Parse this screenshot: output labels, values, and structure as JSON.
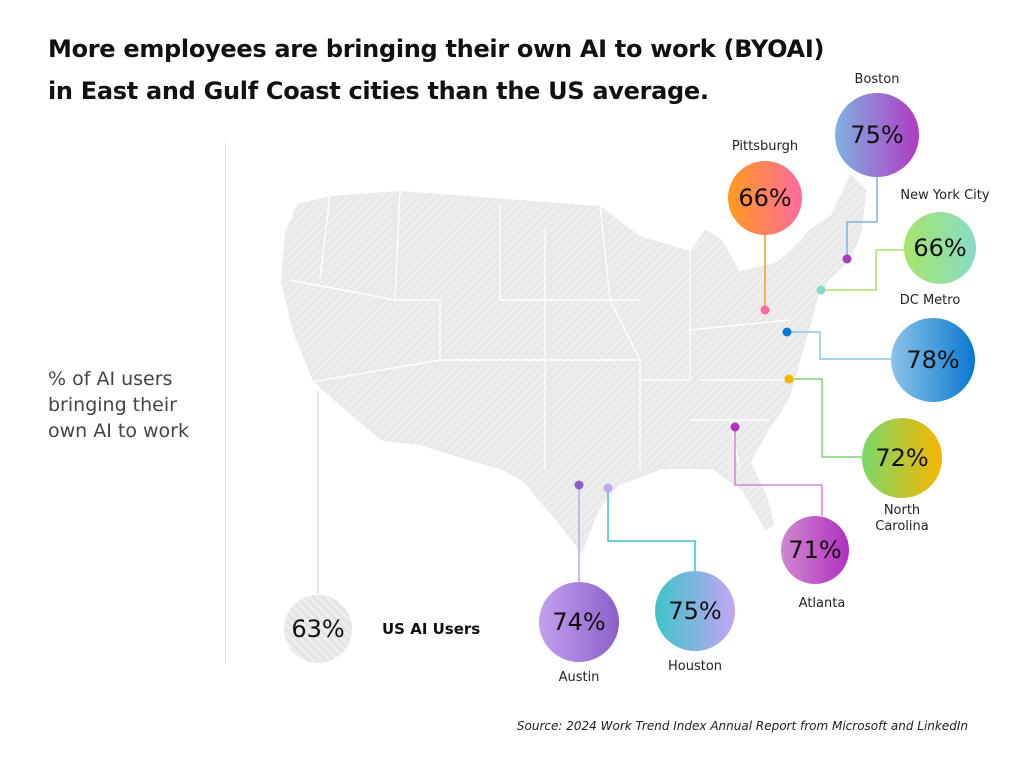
{
  "title_lines": [
    "More employees are bringing their own AI to work (BYOAI)",
    "in East and Gulf Coast cities than the US average."
  ],
  "side_label": "% of AI users bringing their own AI to work",
  "us_average": {
    "label": "US AI Users",
    "value": "63%"
  },
  "cities": [
    {
      "name": "Boston",
      "value": "75%",
      "colors": [
        "#7fb2e0",
        "#b03ac4"
      ]
    },
    {
      "name": "Pittsburgh",
      "value": "66%",
      "colors": [
        "#ff9a1e",
        "#ff6aa0"
      ]
    },
    {
      "name": "New York City",
      "value": "66%",
      "colors": [
        "#a8e46a",
        "#86dcc8"
      ]
    },
    {
      "name": "DC Metro",
      "value": "78%",
      "colors": [
        "#8cc4ea",
        "#0a78d0"
      ]
    },
    {
      "name": "North Carolina",
      "value": "72%",
      "colors": [
        "#7ad86a",
        "#f7b500"
      ]
    },
    {
      "name": "Atlanta",
      "value": "71%",
      "colors": [
        "#d088d0",
        "#b030c0"
      ]
    },
    {
      "name": "Austin",
      "value": "74%",
      "colors": [
        "#c4a0f0",
        "#8a60c8"
      ]
    },
    {
      "name": "Houston",
      "value": "75%",
      "colors": [
        "#3cc4c8",
        "#c4a4f4"
      ]
    }
  ],
  "source": "Source: 2024 Work Trend Index Annual Report from Microsoft and LinkedIn"
}
